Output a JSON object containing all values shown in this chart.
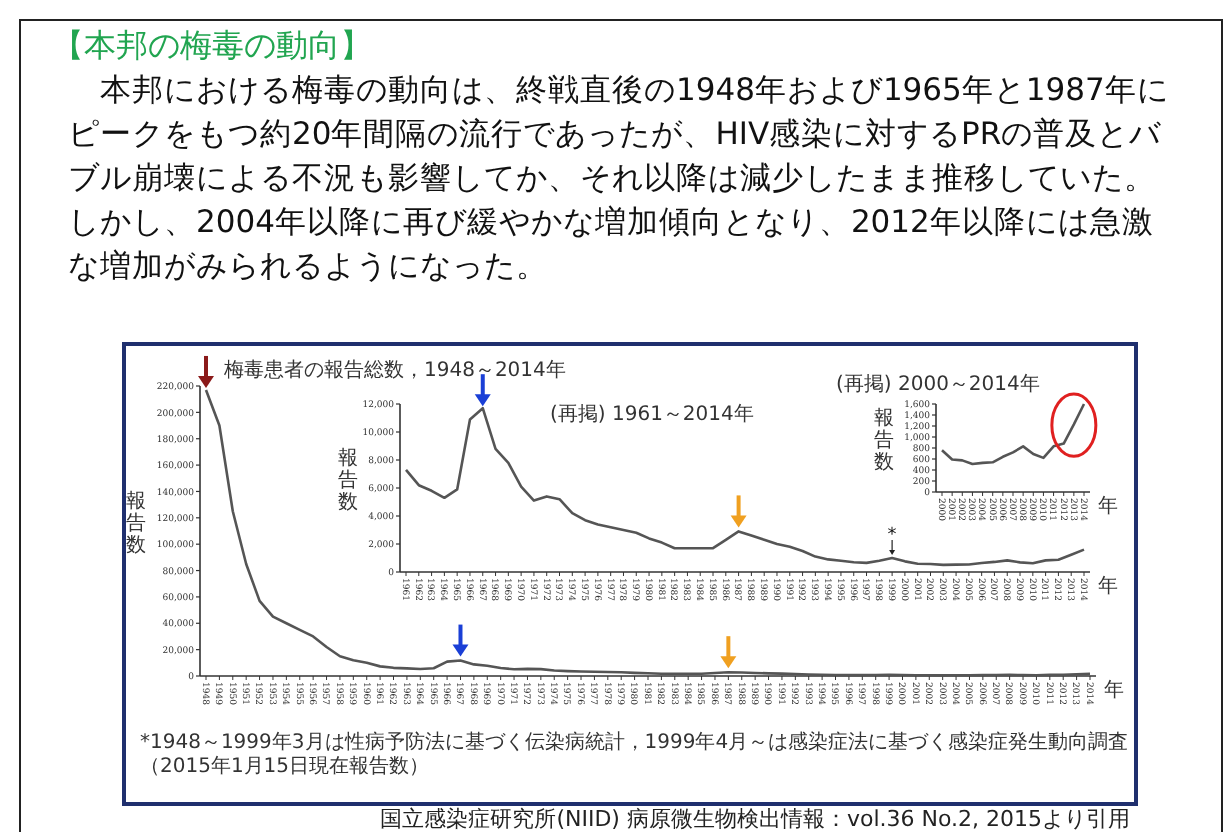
{
  "chart_data": [
    {
      "type": "line",
      "title": "梅毒患者の報告総数，1948～2014年",
      "ylabel": "報告数",
      "xlabel": "年",
      "color": "#555555",
      "marker": "none",
      "grid": false,
      "categories": [
        "1948",
        "1949",
        "1950",
        "1951",
        "1952",
        "1953",
        "1954",
        "1955",
        "1956",
        "1957",
        "1958",
        "1959",
        "1960",
        "1961",
        "1962",
        "1963",
        "1964",
        "1965",
        "1966",
        "1967",
        "1968",
        "1969",
        "1970",
        "1971",
        "1972",
        "1973",
        "1974",
        "1975",
        "1976",
        "1977",
        "1978",
        "1979",
        "1980",
        "1981",
        "1982",
        "1983",
        "1984",
        "1985",
        "1986",
        "1987",
        "1988",
        "1989",
        "1990",
        "1991",
        "1992",
        "1993",
        "1994",
        "1995",
        "1996",
        "1997",
        "1998",
        "1999",
        "2000",
        "2001",
        "2002",
        "2003",
        "2004",
        "2005",
        "2006",
        "2007",
        "2008",
        "2009",
        "2010",
        "2011",
        "2012",
        "2013",
        "2014"
      ],
      "values": [
        217000,
        190000,
        125000,
        85000,
        57000,
        45000,
        40000,
        35000,
        30000,
        22000,
        15000,
        12000,
        10000,
        7300,
        6200,
        5800,
        5300,
        5900,
        10900,
        11700,
        8800,
        7800,
        6100,
        5100,
        5400,
        5200,
        4200,
        3700,
        3400,
        3200,
        3000,
        2800,
        2400,
        2100,
        1700,
        1700,
        1700,
        1700,
        2300,
        2900,
        2600,
        2300,
        2000,
        1800,
        1500,
        1100,
        900,
        800,
        700,
        650,
        800,
        1000,
        760,
        590,
        575,
        510,
        530,
        540,
        640,
        720,
        830,
        690,
        620,
        830,
        880,
        1230,
        1600
      ],
      "ylim": [
        0,
        220000
      ],
      "yticks": [
        0,
        {
          "value": 20000,
          "label": "20,000"
        },
        {
          "value": 40000,
          "label": "40,000"
        },
        {
          "value": 60000,
          "label": "60,000"
        },
        {
          "value": 80000,
          "label": "80,000"
        },
        {
          "value": 100000,
          "label": "100,000"
        },
        {
          "value": 120000,
          "label": "120,000"
        },
        {
          "value": 140000,
          "label": "140,000"
        },
        {
          "value": 160000,
          "label": "160,000"
        },
        {
          "value": 180000,
          "label": "180,000"
        },
        {
          "value": 200000,
          "label": "200,000"
        },
        {
          "value": 220000,
          "label": "220,000"
        }
      ],
      "annotations": [
        "【本邦の梅毒の動向】",
        "　本邦における梅毒の動向は、終戦直後の1948年および1965年と1987年にピークをもつ約20年間隔の流行であったが、HIV感染に対するPRの普及とバブル崩壊による不況も影響してか、それ以降は減少したまま推移していた。しかし、2004年以降に再び緩やかな増加傾向となり、2012年以降には急激な増加がみられるようになった。",
        "*1948～1999年3月は性病予防法に基づく伝染病統計，1999年4月～は感染症法に基づく感染症発生動向調査（2015年1月15日現在報告数）",
        "国立感染症研究所(NIID) 病原微生物検出情報：vol.36 No.2, 2015より引用"
      ]
    },
    {
      "type": "line",
      "title": "(再掲) 1961～2014年",
      "ylabel": "報告数",
      "xlabel": "年",
      "color": "#555555",
      "marker": "none",
      "grid": false,
      "categories": [
        "1961",
        "1962",
        "1963",
        "1964",
        "1965",
        "1966",
        "1967",
        "1968",
        "1969",
        "1970",
        "1971",
        "1972",
        "1973",
        "1974",
        "1975",
        "1976",
        "1977",
        "1978",
        "1979",
        "1980",
        "1981",
        "1982",
        "1983",
        "1984",
        "1985",
        "1986",
        "1987",
        "1988",
        "1989",
        "1990",
        "1991",
        "1992",
        "1993",
        "1994",
        "1995",
        "1996",
        "1997",
        "1998",
        "1999",
        "2000",
        "2001",
        "2002",
        "2003",
        "2004",
        "2005",
        "2006",
        "2007",
        "2008",
        "2009",
        "2010",
        "2011",
        "2012",
        "2013",
        "2014"
      ],
      "values": [
        7300,
        6200,
        5800,
        5300,
        5900,
        10900,
        11700,
        8800,
        7800,
        6100,
        5100,
        5400,
        5200,
        4200,
        3700,
        3400,
        3200,
        3000,
        2800,
        2400,
        2100,
        1700,
        1700,
        1700,
        1700,
        2300,
        2900,
        2600,
        2300,
        2000,
        1800,
        1500,
        1100,
        900,
        800,
        700,
        650,
        800,
        1000,
        760,
        590,
        575,
        510,
        530,
        540,
        640,
        720,
        830,
        690,
        620,
        830,
        880,
        1230,
        1600
      ],
      "ylim": [
        0,
        12000
      ],
      "yticks": [
        0,
        {
          "value": 2000,
          "label": "2,000"
        },
        {
          "value": 4000,
          "label": "4,000"
        },
        {
          "value": 6000,
          "label": "6,000"
        },
        {
          "value": 8000,
          "label": "8,000"
        },
        {
          "value": 10000,
          "label": "10,000"
        },
        {
          "value": 12000,
          "label": "12,000"
        }
      ],
      "annotations": [
        {
          "text": "*",
          "x": "1999",
          "y": 1000
        }
      ]
    },
    {
      "type": "line",
      "title": "(再掲) 2000～2014年",
      "ylabel": "報告数",
      "xlabel": "年",
      "color": "#555555",
      "marker": "none",
      "grid": false,
      "categories": [
        "2000",
        "2001",
        "2002",
        "2003",
        "2004",
        "2005",
        "2006",
        "2007",
        "2008",
        "2009",
        "2010",
        "2011",
        "2012",
        "2013",
        "2014"
      ],
      "values": [
        760,
        590,
        575,
        510,
        530,
        540,
        640,
        720,
        830,
        690,
        620,
        830,
        880,
        1230,
        1600
      ],
      "ylim": [
        0,
        1600
      ],
      "yticks": [
        0,
        200,
        400,
        600,
        800,
        {
          "value": 1000,
          "label": "1,000"
        },
        {
          "value": 1200,
          "label": "1,200"
        },
        {
          "value": 1400,
          "label": "1,400"
        },
        {
          "value": 1600,
          "label": "1,600"
        }
      ]
    }
  ]
}
